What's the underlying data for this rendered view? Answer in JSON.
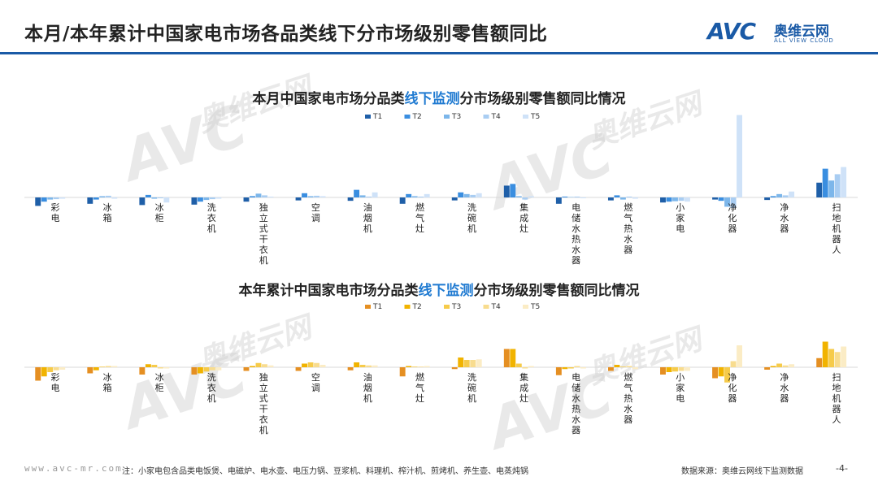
{
  "header": {
    "title": "本月/本年累计中国家电市场各品类线下分市场级别零售额同比",
    "logo_mark": "AVC",
    "logo_cn": "奥维云网",
    "logo_en": "ALL VIEW CLOUD"
  },
  "watermark": {
    "mark": "AVC",
    "cn": "奥维云网",
    "en": "ALL VIEW CLOUD"
  },
  "footer": {
    "url": "www.avc-mr.com",
    "note": "注：小家电包含品类电饭煲、电磁炉、电水壶、电压力锅、豆浆机、料理机、榨汁机、煎烤机、养生壶、电蒸炖锅",
    "source": "数据来源：奥维云网线下监测数据",
    "page": "-4-"
  },
  "colors": {
    "brand": "#1a5aa6",
    "highlight": "#1f7ad1",
    "monthly": [
      "#1f5fa8",
      "#3a8ee0",
      "#7cb6ea",
      "#a9cdf2",
      "#cfe2f8"
    ],
    "ytd": [
      "#e58f22",
      "#f1b300",
      "#f6cb4a",
      "#f8dc8e",
      "#fbecc5"
    ]
  },
  "chart_data": [
    {
      "type": "bar",
      "title_parts": [
        "本月中国家电市场分品类",
        "线下监测",
        "分市场级别零售额同比情况"
      ],
      "categories": [
        "彩电",
        "冰箱",
        "冰柜",
        "洗衣机",
        "独立式干衣机",
        "空调",
        "油烟机",
        "燃气灶",
        "洗碗机",
        "集成灶",
        "电储水热水器",
        "燃气热水器",
        "小家电",
        "净化器",
        "净水器",
        "扫地机器人"
      ],
      "series": [
        {
          "name": "T1",
          "values": [
            -0.2,
            -0.15,
            -0.18,
            -0.17,
            -0.1,
            -0.07,
            -0.08,
            -0.15,
            -0.07,
            0.28,
            -0.15,
            -0.07,
            -0.12,
            -0.05,
            -0.06,
            0.35
          ]
        },
        {
          "name": "T2",
          "values": [
            -0.1,
            -0.05,
            0.06,
            -0.1,
            0.03,
            0.1,
            0.18,
            0.08,
            0.12,
            0.32,
            0.02,
            0.05,
            -0.1,
            -0.08,
            0.03,
            0.68
          ]
        },
        {
          "name": "T3",
          "values": [
            -0.05,
            0.03,
            -0.03,
            -0.06,
            0.09,
            0.03,
            0.05,
            0.03,
            0.08,
            0.03,
            0.01,
            -0.05,
            -0.09,
            -0.22,
            0.08,
            0.4
          ]
        },
        {
          "name": "T4",
          "values": [
            -0.04,
            0.04,
            -0.02,
            -0.04,
            0.05,
            0.04,
            0.02,
            0.02,
            0.06,
            -0.05,
            0.02,
            0.02,
            -0.08,
            -0.25,
            0.05,
            0.55
          ]
        },
        {
          "name": "T5",
          "values": [
            -0.03,
            -0.03,
            -0.12,
            -0.03,
            0.02,
            0.03,
            0.12,
            0.08,
            0.1,
            0.03,
            -0.02,
            -0.03,
            -0.1,
            1.95,
            0.14,
            0.72
          ]
        }
      ],
      "legend_position": "top-center",
      "grid": false
    },
    {
      "type": "bar",
      "title_parts": [
        "本年累计中国家电市场分品类",
        "线下监测",
        "分市场级别零售额同比情况"
      ],
      "categories": [
        "彩电",
        "冰箱",
        "冰柜",
        "洗衣机",
        "独立式干衣机",
        "空调",
        "油烟机",
        "燃气灶",
        "洗碗机",
        "集成灶",
        "电储水热水器",
        "燃气热水器",
        "小家电",
        "净化器",
        "净水器",
        "扫地机器人"
      ],
      "series": [
        {
          "name": "T1",
          "values": [
            -0.22,
            -0.1,
            -0.12,
            -0.12,
            -0.06,
            -0.06,
            -0.05,
            -0.15,
            -0.03,
            0.3,
            -0.13,
            -0.06,
            -0.12,
            -0.18,
            -0.04,
            0.15
          ]
        },
        {
          "name": "T2",
          "values": [
            -0.15,
            -0.05,
            0.05,
            -0.1,
            0.02,
            0.06,
            0.08,
            0.02,
            0.16,
            0.3,
            -0.03,
            0.04,
            -0.08,
            -0.15,
            0.02,
            0.42
          ]
        },
        {
          "name": "T3",
          "values": [
            -0.08,
            0.01,
            0.04,
            -0.07,
            0.07,
            0.08,
            0.04,
            0.01,
            0.12,
            0.06,
            -0.02,
            0.01,
            -0.07,
            -0.25,
            0.06,
            0.3
          ]
        },
        {
          "name": "T4",
          "values": [
            -0.05,
            0.02,
            -0.02,
            -0.05,
            0.05,
            0.07,
            0.03,
            0.01,
            0.12,
            -0.02,
            0.02,
            0.02,
            -0.06,
            0.1,
            0.03,
            0.25
          ]
        },
        {
          "name": "T5",
          "values": [
            -0.04,
            0.02,
            -0.02,
            -0.05,
            0.03,
            0.04,
            0.03,
            0.02,
            0.13,
            0.02,
            -0.02,
            -0.03,
            -0.06,
            0.36,
            0.05,
            0.34
          ]
        }
      ],
      "legend_position": "top-center",
      "grid": false
    }
  ]
}
